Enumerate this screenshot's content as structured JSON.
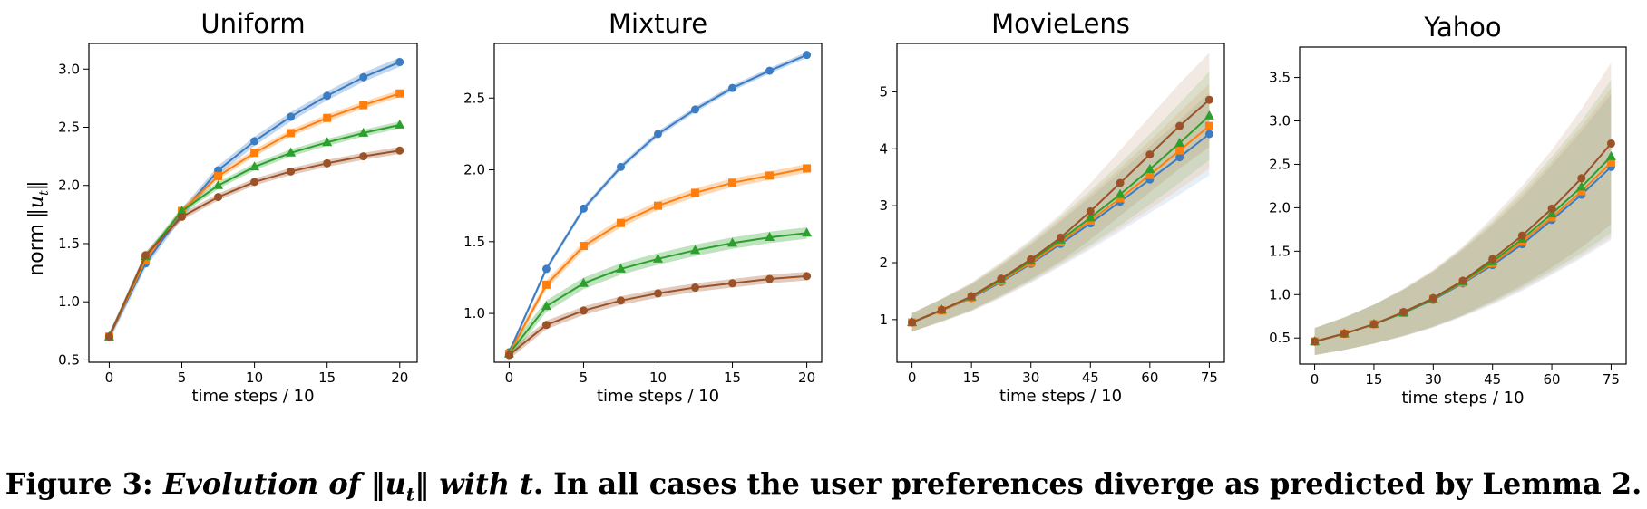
{
  "figure": {
    "ylabel_prefix": "norm",
    "ylabel_math": "‖u",
    "ylabel_sub": "t",
    "ylabel_close": "‖"
  },
  "caption": {
    "lead": "Figure 3: ",
    "italic_1": "Evolution of ",
    "math_open": "‖u",
    "math_sub": "t",
    "math_close": "‖",
    "italic_2": " with ",
    "math_t": "t",
    "rest": ". In all cases the user preferences diverge as predicted by Lemma 2."
  },
  "colors": {
    "blue": "#3b7cc2",
    "orange": "#ff7f0e",
    "green": "#2ca02c",
    "brown": "#9b5228"
  },
  "chart_data": [
    {
      "type": "line",
      "title": "Uniform",
      "xlabel": "time steps / 10",
      "xlim": [
        -1.4,
        21.2
      ],
      "ylim": [
        0.48,
        3.22
      ],
      "xticks": [
        0,
        5,
        10,
        15,
        20
      ],
      "yticks": [
        0.5,
        1.0,
        1.5,
        2.0,
        2.5,
        3.0
      ],
      "ytick_labels": [
        "0.5",
        "1.0",
        "1.5",
        "2.0",
        "2.5",
        "3.0"
      ],
      "x": [
        0,
        2.5,
        5,
        7.5,
        10,
        12.5,
        15,
        17.5,
        20
      ],
      "series": [
        {
          "color": "#3b7cc2",
          "marker": "circle",
          "band": 0.04,
          "values": [
            0.7,
            1.33,
            1.76,
            2.13,
            2.38,
            2.59,
            2.77,
            2.93,
            3.06
          ]
        },
        {
          "color": "#ff7f0e",
          "marker": "square",
          "band": 0.03,
          "values": [
            0.7,
            1.36,
            1.78,
            2.08,
            2.28,
            2.45,
            2.58,
            2.69,
            2.79
          ]
        },
        {
          "color": "#2ca02c",
          "marker": "triangle",
          "band": 0.03,
          "values": [
            0.7,
            1.39,
            1.78,
            2.0,
            2.16,
            2.28,
            2.37,
            2.45,
            2.52
          ]
        },
        {
          "color": "#9b5228",
          "marker": "circle",
          "band": 0.03,
          "values": [
            0.7,
            1.4,
            1.73,
            1.9,
            2.03,
            2.12,
            2.19,
            2.25,
            2.3
          ]
        }
      ]
    },
    {
      "type": "line",
      "title": "Mixture",
      "xlabel": "time steps / 10",
      "xlim": [
        -1.0,
        21.0
      ],
      "ylim": [
        0.66,
        2.88
      ],
      "xticks": [
        0,
        5,
        10,
        15,
        20
      ],
      "yticks": [
        1.0,
        1.5,
        2.0,
        2.5
      ],
      "ytick_labels": [
        "1.0",
        "1.5",
        "2.0",
        "2.5"
      ],
      "x": [
        0,
        2.5,
        5,
        7.5,
        10,
        12.5,
        15,
        17.5,
        20
      ],
      "series": [
        {
          "color": "#3b7cc2",
          "marker": "circle",
          "band": 0.02,
          "values": [
            0.73,
            1.31,
            1.73,
            2.02,
            2.25,
            2.42,
            2.57,
            2.69,
            2.8
          ]
        },
        {
          "color": "#ff7f0e",
          "marker": "square",
          "band": 0.03,
          "values": [
            0.72,
            1.2,
            1.47,
            1.63,
            1.75,
            1.84,
            1.91,
            1.96,
            2.01
          ]
        },
        {
          "color": "#2ca02c",
          "marker": "triangle",
          "band": 0.04,
          "values": [
            0.72,
            1.05,
            1.21,
            1.31,
            1.38,
            1.44,
            1.49,
            1.53,
            1.56
          ]
        },
        {
          "color": "#9b5228",
          "marker": "circle",
          "band": 0.03,
          "values": [
            0.71,
            0.92,
            1.02,
            1.09,
            1.14,
            1.18,
            1.21,
            1.24,
            1.26
          ]
        }
      ]
    },
    {
      "type": "line",
      "title": "MovieLens",
      "xlabel": "time steps / 10",
      "xlim": [
        -3.8,
        78.8
      ],
      "ylim": [
        0.25,
        5.85
      ],
      "xticks": [
        0,
        15,
        30,
        45,
        60,
        75
      ],
      "yticks": [
        1,
        2,
        3,
        4,
        5
      ],
      "ytick_labels": [
        "1",
        "2",
        "3",
        "4",
        "5"
      ],
      "x": [
        0,
        7.5,
        15,
        22.5,
        30,
        37.5,
        45,
        52.5,
        60,
        67.5,
        75
      ],
      "series": [
        {
          "color": "#3b7cc2",
          "marker": "circle",
          "band_scale": 0.17,
          "values": [
            0.95,
            1.16,
            1.38,
            1.66,
            1.98,
            2.33,
            2.69,
            3.07,
            3.46,
            3.85,
            4.26
          ]
        },
        {
          "color": "#ff7f0e",
          "marker": "square",
          "band_scale": 0.17,
          "values": [
            0.95,
            1.16,
            1.39,
            1.68,
            2.0,
            2.36,
            2.74,
            3.13,
            3.54,
            3.97,
            4.4
          ]
        },
        {
          "color": "#2ca02c",
          "marker": "triangle",
          "band_scale": 0.17,
          "values": [
            0.95,
            1.17,
            1.4,
            1.7,
            2.03,
            2.4,
            2.79,
            3.2,
            3.64,
            4.1,
            4.58
          ]
        },
        {
          "color": "#9b5228",
          "marker": "circle",
          "band_scale": 0.17,
          "values": [
            0.95,
            1.17,
            1.41,
            1.72,
            2.06,
            2.44,
            2.9,
            3.4,
            3.9,
            4.4,
            4.86
          ]
        }
      ]
    },
    {
      "type": "line",
      "title": "Yahoo",
      "xlabel": "time steps / 10",
      "xlim": [
        -3.8,
        78.8
      ],
      "ylim": [
        0.2,
        3.85
      ],
      "xticks": [
        0,
        15,
        30,
        45,
        60,
        75
      ],
      "yticks": [
        0.5,
        1.0,
        1.5,
        2.0,
        2.5,
        3.0,
        3.5
      ],
      "ytick_labels": [
        "0.5",
        "1.0",
        "1.5",
        "2.0",
        "2.5",
        "3.0",
        "3.5"
      ],
      "x": [
        0,
        7.5,
        15,
        22.5,
        30,
        37.5,
        45,
        52.5,
        60,
        67.5,
        75
      ],
      "series": [
        {
          "color": "#3b7cc2",
          "marker": "circle",
          "band_scale": 0.34,
          "values": [
            0.46,
            0.55,
            0.66,
            0.79,
            0.94,
            1.13,
            1.34,
            1.58,
            1.86,
            2.15,
            2.47
          ]
        },
        {
          "color": "#ff7f0e",
          "marker": "square",
          "band_scale": 0.34,
          "values": [
            0.46,
            0.55,
            0.66,
            0.79,
            0.95,
            1.14,
            1.36,
            1.61,
            1.89,
            2.19,
            2.52
          ]
        },
        {
          "color": "#2ca02c",
          "marker": "triangle",
          "band_scale": 0.34,
          "values": [
            0.46,
            0.55,
            0.66,
            0.79,
            0.95,
            1.15,
            1.38,
            1.64,
            1.93,
            2.24,
            2.59
          ]
        },
        {
          "color": "#9b5228",
          "marker": "circle",
          "band_scale": 0.34,
          "values": [
            0.46,
            0.55,
            0.66,
            0.8,
            0.96,
            1.16,
            1.41,
            1.68,
            1.99,
            2.34,
            2.74
          ]
        }
      ]
    }
  ]
}
